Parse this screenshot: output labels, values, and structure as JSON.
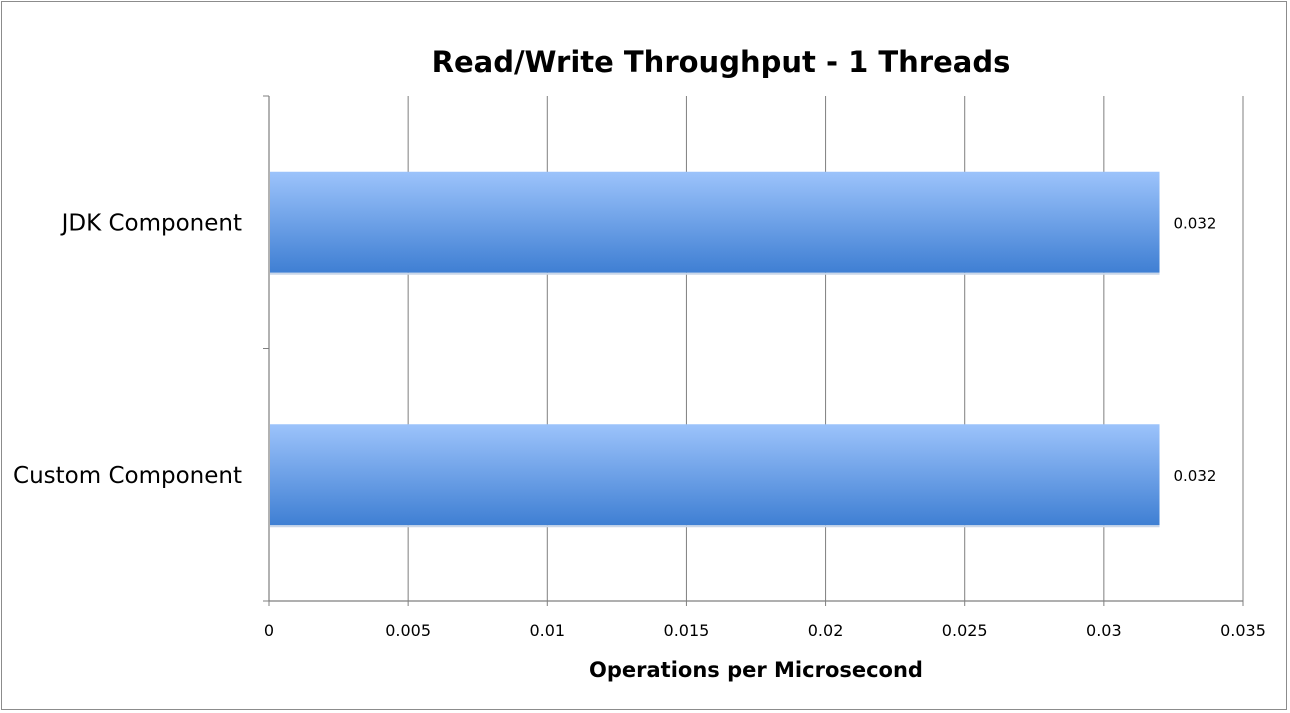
{
  "chart_data": {
    "type": "bar",
    "orientation": "horizontal",
    "title": "Read/Write Throughput - 1 Threads",
    "xlabel": "Operations per Microsecond",
    "ylabel": "",
    "categories": [
      "JDK Component",
      "Custom Component"
    ],
    "values": [
      0.032,
      0.032
    ],
    "data_labels": [
      "0.032",
      "0.032"
    ],
    "xlim": [
      0,
      0.035
    ],
    "x_ticks": [
      0,
      0.005,
      0.01,
      0.015,
      0.02,
      0.025,
      0.03,
      0.035
    ],
    "x_tick_labels": [
      "0",
      "0.005",
      "0.01",
      "0.015",
      "0.02",
      "0.025",
      "0.03",
      "0.035"
    ],
    "grid": "vertical",
    "legend": "none",
    "colors": {
      "bar_top": "#9cc3fb",
      "bar_bottom": "#3f7fd3",
      "grid": "#7f7f7f",
      "axis": "#7f7f7f"
    }
  }
}
